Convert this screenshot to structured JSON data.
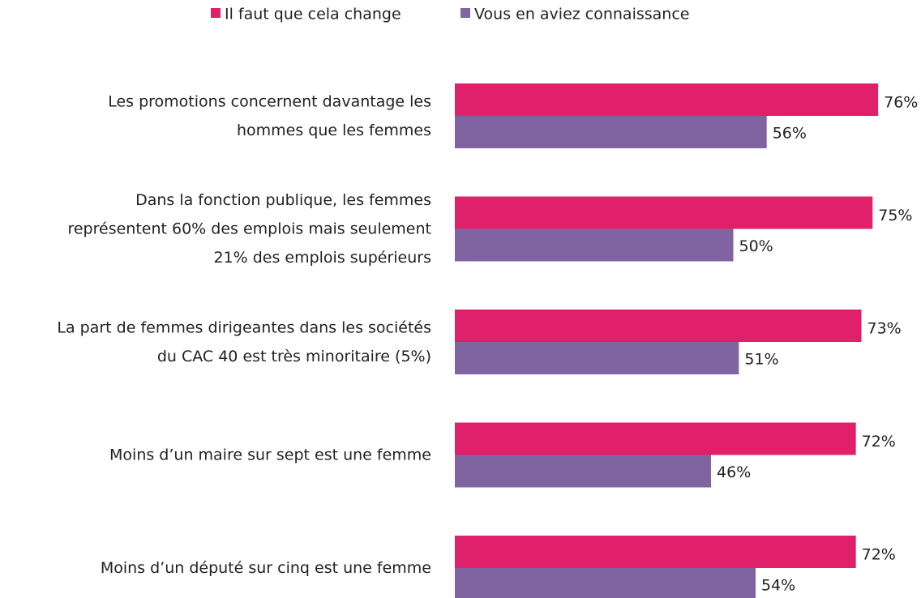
{
  "chart_data": {
    "type": "hbar",
    "categories": [
      "Les promotions concernent davantage les\nhommes que les femmes",
      "Dans la fonction publique, les femmes\nreprésentent 60% des emplois mais seulement\n21% des emplois supérieurs",
      "La part de femmes dirigeantes dans les sociétés\ndu CAC 40  est très minoritaire (5%)",
      "Moins d’un maire sur sept est une femme",
      "Moins d’un député sur cinq est une femme"
    ],
    "series": [
      {
        "name": "Il faut que cela change",
        "color": "#e0206a",
        "values": [
          76,
          75,
          73,
          72,
          72
        ],
        "value_labels": [
          "76%",
          "75%",
          "73%",
          "72%",
          "72%"
        ]
      },
      {
        "name": "Vous en aviez connaissance",
        "color": "#8064a2",
        "values": [
          56,
          50,
          51,
          46,
          54
        ],
        "value_labels": [
          "56%",
          "50%",
          "51%",
          "46%",
          "54%"
        ]
      }
    ],
    "legend": "top"
  }
}
